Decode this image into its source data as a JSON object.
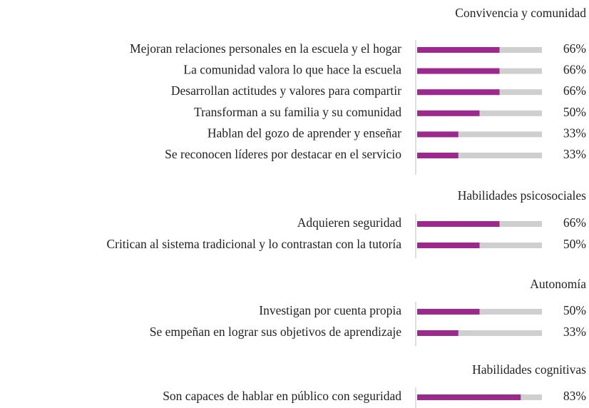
{
  "chart_data": [
    {
      "type": "bar",
      "orientation": "horizontal",
      "title": "Convivencia y comunidad",
      "color": "#9c2a8c",
      "categories": [
        "Mejoran relaciones personales en la escuela y el hogar",
        "La comunidad valora lo que hace la escuela",
        "Desarrollan actitudes y valores para compartir",
        "Transforman a su familia y su comunidad",
        "Hablan del gozo de aprender y enseñar",
        "Se reconocen líderes por destacar en el servicio"
      ],
      "values": [
        66,
        66,
        66,
        50,
        33,
        33
      ],
      "value_labels": [
        "66%",
        "66%",
        "66%",
        "50%",
        "33%",
        "33%"
      ]
    },
    {
      "type": "bar",
      "orientation": "horizontal",
      "title": "Habilidades psicosociales",
      "color": "#9c2a8c",
      "categories": [
        "Adquieren seguridad",
        "Critican al sistema tradicional y lo contrastan con la tutoría"
      ],
      "values": [
        66,
        50
      ],
      "value_labels": [
        "66%",
        "50%"
      ]
    },
    {
      "type": "bar",
      "orientation": "horizontal",
      "title": "Autonomía",
      "color": "#9c2a8c",
      "categories": [
        "Investigan por cuenta propia",
        "Se empeñan en lograr sus objetivos de aprendizaje"
      ],
      "values": [
        50,
        33
      ],
      "value_labels": [
        "50%",
        "33%"
      ]
    },
    {
      "type": "bar",
      "orientation": "horizontal",
      "title": "Habilidades cognitivas",
      "color": "#9c2a8c",
      "categories": [
        "Son capaces de hablar en público con seguridad"
      ],
      "values": [
        83
      ],
      "value_labels": [
        "83%"
      ]
    }
  ]
}
